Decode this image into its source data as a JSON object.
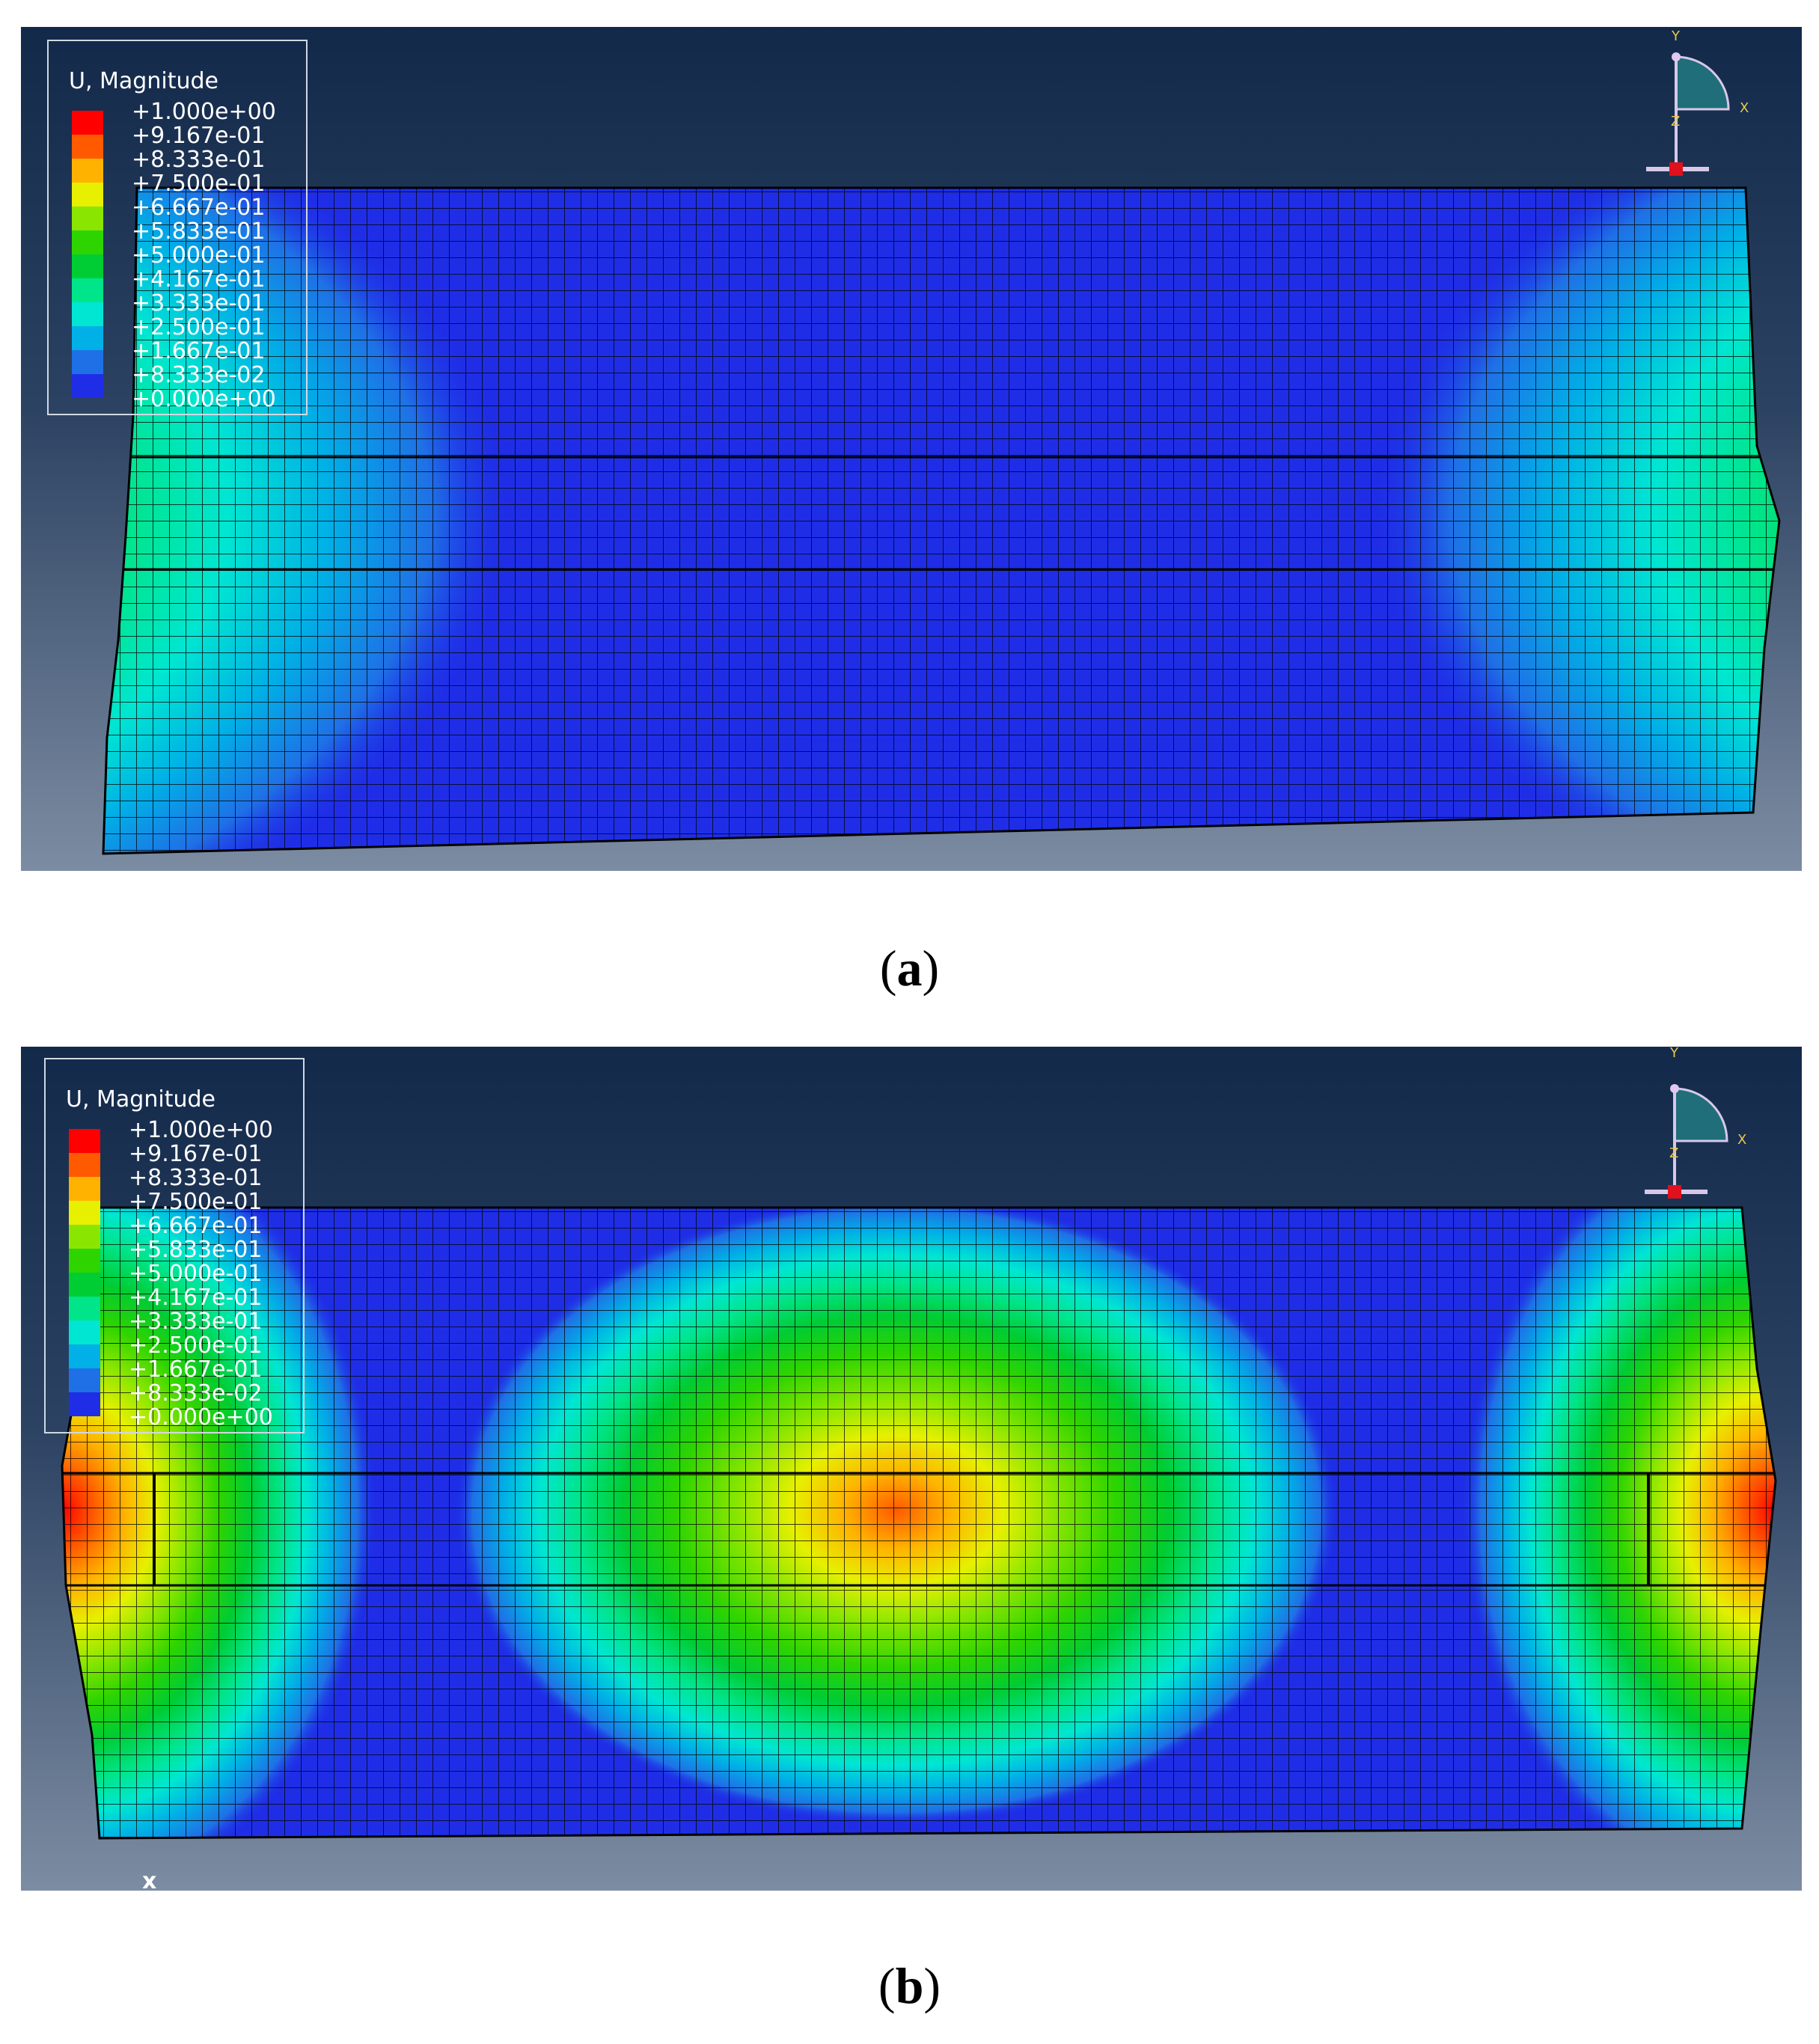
{
  "panels": [
    {
      "id": "a",
      "caption": "a",
      "legend": {
        "title": "U, Magnitude",
        "labels": [
          "+1.000e+00",
          "+9.167e-01",
          "+8.333e-01",
          "+7.500e-01",
          "+6.667e-01",
          "+5.833e-01",
          "+5.000e-01",
          "+4.167e-01",
          "+3.333e-01",
          "+2.500e-01",
          "+1.667e-01",
          "+8.333e-02",
          "+0.000e+00"
        ]
      },
      "triad": {
        "y": "Y",
        "x": "X",
        "z": "Z"
      }
    },
    {
      "id": "b",
      "caption": "b",
      "legend": {
        "title": "U, Magnitude",
        "labels": [
          "+1.000e+00",
          "+9.167e-01",
          "+8.333e-01",
          "+7.500e-01",
          "+6.667e-01",
          "+5.833e-01",
          "+5.000e-01",
          "+4.167e-01",
          "+3.333e-01",
          "+2.500e-01",
          "+1.667e-01",
          "+8.333e-02",
          "+0.000e+00"
        ]
      },
      "triad": {
        "y": "Y",
        "x": "X",
        "z": "Z"
      },
      "corner_mark": "x"
    }
  ],
  "contour_colors": [
    "#ff0000",
    "#ff5a00",
    "#ffb300",
    "#e6f000",
    "#8ae600",
    "#2ed400",
    "#00cc33",
    "#00e58a",
    "#00e6d2",
    "#00b0e6",
    "#1f70e6",
    "#1f2ee6"
  ]
}
